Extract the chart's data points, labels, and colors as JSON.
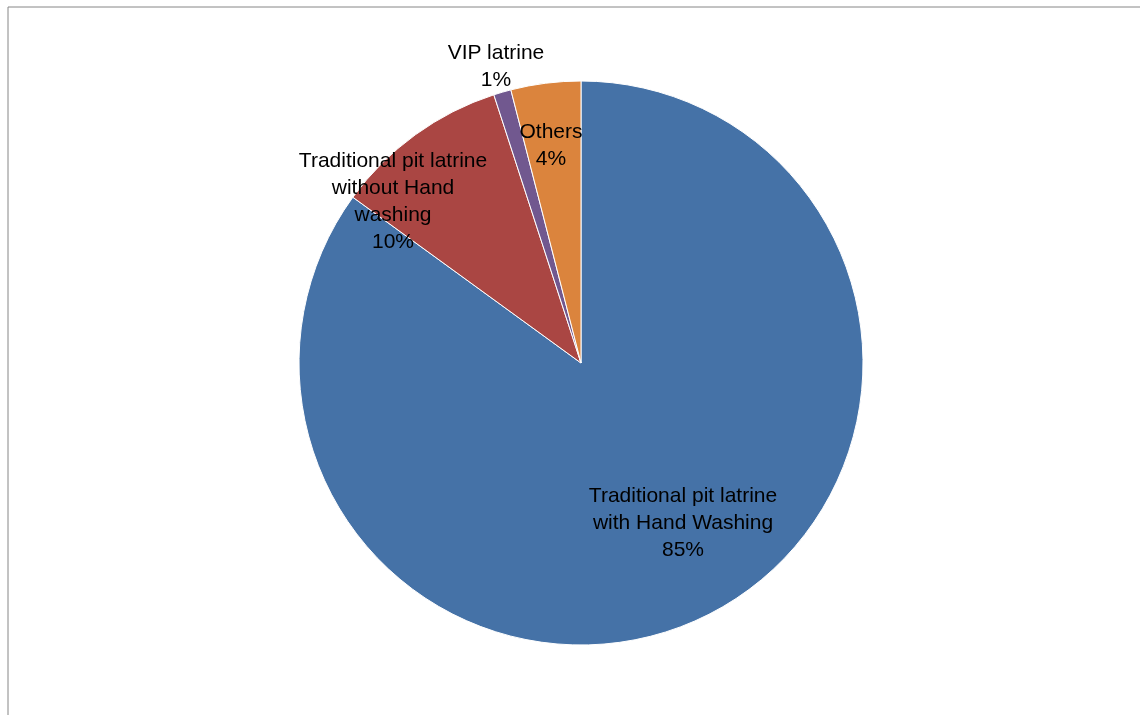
{
  "chart_data": {
    "type": "pie",
    "categories": [
      "Traditional pit latrine with Hand Washing",
      "Traditional pit latrine without Hand washing",
      "VIP latrine",
      "Others"
    ],
    "values": [
      85,
      10,
      1,
      4
    ],
    "colors": [
      "#4572a7",
      "#aa4643",
      "#71588f",
      "#db843d"
    ],
    "value_labels": [
      "85%",
      "10%",
      "1%",
      "4%"
    ]
  }
}
